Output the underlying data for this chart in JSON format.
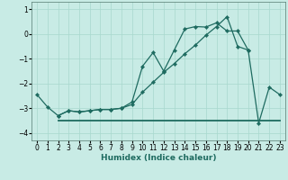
{
  "title": "",
  "xlabel": "Humidex (Indice chaleur)",
  "bg_color": "#c8ebe5",
  "line_color": "#1e6b60",
  "grid_color": "#a8d8ce",
  "xlim": [
    -0.5,
    23.5
  ],
  "ylim": [
    -4.3,
    1.3
  ],
  "yticks": [
    -4,
    -3,
    -2,
    -1,
    0,
    1
  ],
  "xticks": [
    0,
    1,
    2,
    3,
    4,
    5,
    6,
    7,
    8,
    9,
    10,
    11,
    12,
    13,
    14,
    15,
    16,
    17,
    18,
    19,
    20,
    21,
    22,
    23
  ],
  "line1_x": [
    0,
    1,
    2,
    3,
    4,
    5,
    6,
    7,
    8,
    9,
    10,
    11,
    12,
    13,
    14,
    15,
    16,
    17,
    18,
    19,
    20,
    21,
    22,
    23
  ],
  "line1_y": [
    -2.45,
    -2.95,
    -3.3,
    -3.1,
    -3.15,
    -3.1,
    -3.05,
    -3.05,
    -3.0,
    -2.75,
    -1.3,
    -0.75,
    -1.5,
    -0.65,
    0.2,
    0.3,
    0.28,
    0.45,
    0.12,
    0.12,
    -0.65,
    -3.6,
    -2.15,
    -2.45
  ],
  "line2_x": [
    2,
    3,
    4,
    5,
    6,
    7,
    8,
    9,
    10,
    11,
    12,
    13,
    14,
    15,
    16,
    17,
    18,
    19,
    20
  ],
  "line2_y": [
    -3.3,
    -3.1,
    -3.15,
    -3.1,
    -3.05,
    -3.05,
    -3.0,
    -2.85,
    -2.35,
    -1.95,
    -1.55,
    -1.2,
    -0.8,
    -0.45,
    -0.05,
    0.3,
    0.7,
    -0.5,
    -0.65
  ],
  "line3_x": [
    2,
    23
  ],
  "line3_y": [
    -3.5,
    -3.5
  ],
  "title_fontsize": 6,
  "tick_fontsize": 5.5,
  "label_fontsize": 6.5
}
